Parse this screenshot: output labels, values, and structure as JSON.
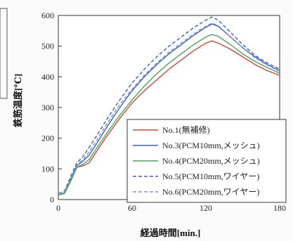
{
  "chart_data": {
    "type": "line",
    "xlabel": "経過時間[min.]",
    "ylabel": "鉄筋温度[℃]",
    "xlim": [
      0,
      180
    ],
    "ylim": [
      0,
      600
    ],
    "xticks": [
      0,
      60,
      120,
      180
    ],
    "yticks": [
      0,
      100,
      200,
      300,
      400,
      500,
      600
    ],
    "legend_position": "lower-right",
    "grid": false,
    "series": [
      {
        "name": "No.1(無補修)",
        "color": "#d8433c",
        "dashed": false,
        "x": [
          0,
          5,
          10,
          15,
          20,
          25,
          30,
          40,
          50,
          60,
          70,
          80,
          90,
          100,
          110,
          120,
          125,
          130,
          140,
          150,
          160,
          170,
          180
        ],
        "y": [
          15,
          20,
          60,
          105,
          110,
          120,
          150,
          210,
          265,
          315,
          355,
          390,
          425,
          455,
          485,
          510,
          517,
          510,
          490,
          465,
          440,
          420,
          405
        ]
      },
      {
        "name": "No.3(PCM10mm,メッシュ)",
        "color": "#3b5fc0",
        "dashed": false,
        "x": [
          0,
          5,
          10,
          15,
          20,
          25,
          30,
          40,
          50,
          60,
          70,
          80,
          90,
          100,
          110,
          120,
          125,
          130,
          140,
          150,
          160,
          170,
          180
        ],
        "y": [
          15,
          22,
          65,
          110,
          125,
          145,
          175,
          240,
          300,
          355,
          400,
          440,
          475,
          505,
          535,
          562,
          572,
          565,
          530,
          495,
          465,
          440,
          420
        ]
      },
      {
        "name": "No.4(PCM20mm,メッシュ)",
        "color": "#4aa35a",
        "dashed": false,
        "x": [
          0,
          5,
          10,
          15,
          20,
          25,
          30,
          40,
          50,
          60,
          70,
          80,
          90,
          100,
          110,
          120,
          125,
          130,
          140,
          150,
          160,
          170,
          180
        ],
        "y": [
          15,
          20,
          60,
          105,
          115,
          130,
          160,
          220,
          275,
          325,
          370,
          410,
          445,
          475,
          505,
          530,
          538,
          532,
          505,
          475,
          450,
          430,
          412
        ]
      },
      {
        "name": "No.5(PCM10mm,ワイヤー)",
        "color": "#3b5fc0",
        "dashed": true,
        "x": [
          0,
          5,
          10,
          15,
          20,
          25,
          30,
          40,
          50,
          60,
          70,
          80,
          90,
          100,
          110,
          120,
          125,
          130,
          140,
          150,
          160,
          170,
          180
        ],
        "y": [
          20,
          28,
          75,
          120,
          140,
          170,
          200,
          265,
          325,
          380,
          425,
          465,
          500,
          530,
          560,
          585,
          595,
          585,
          545,
          505,
          470,
          445,
          425
        ]
      },
      {
        "name": "No.6(PCM20mm,ワイヤー)",
        "color": "#7b8fd2",
        "dashed": true,
        "x": [
          0,
          5,
          10,
          15,
          20,
          25,
          30,
          40,
          50,
          60,
          70,
          80,
          90,
          100,
          110,
          120,
          125,
          130,
          140,
          150,
          160,
          170,
          180
        ],
        "y": [
          20,
          25,
          70,
          115,
          130,
          155,
          185,
          250,
          310,
          360,
          405,
          445,
          480,
          510,
          540,
          565,
          575,
          567,
          530,
          495,
          462,
          438,
          418
        ]
      }
    ]
  }
}
